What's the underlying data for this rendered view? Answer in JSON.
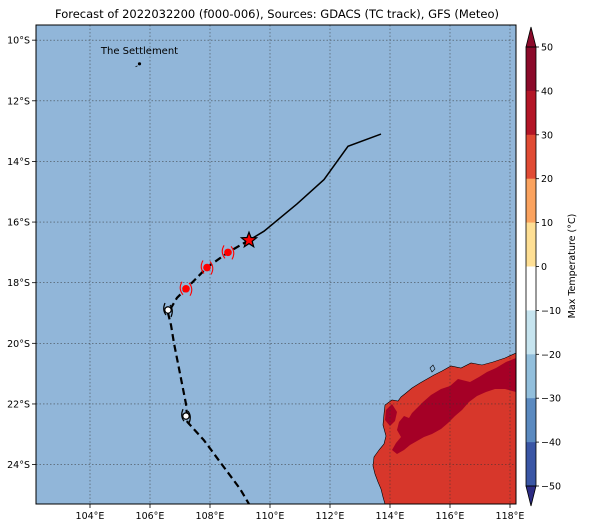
{
  "title": "Forecast of 2022032200 (f000-006), Sources: GDACS (TC track), GFS (Meteo)",
  "place_label": "The Settlement",
  "colorbar": {
    "label": "Max Temperature (°C)",
    "range": [
      -50,
      50
    ],
    "tick_labels": [
      "−50",
      "−40",
      "−30",
      "−20",
      "−10",
      "0",
      "10",
      "20",
      "30",
      "40",
      "50"
    ],
    "colors": [
      "#2c2b83",
      "#3a56a5",
      "#5b8ac0",
      "#92bfdc",
      "#c6e4ef",
      "#ffffff",
      "#fedf94",
      "#fba35f",
      "#e04b34",
      "#b31627",
      "#8b0a2a"
    ]
  },
  "colors": {
    "ocean": "#91b6d9",
    "land": "#d7372b",
    "land_hot": "#a50026",
    "track": "#000000",
    "forecast_marker": "#ff0000"
  },
  "map": {
    "lon_range": [
      102.2,
      118.2
    ],
    "lat_range": [
      -25.3,
      -9.5
    ],
    "lon_ticks": [
      "104°E",
      "106°E",
      "108°E",
      "110°E",
      "112°E",
      "114°E",
      "116°E",
      "118°E"
    ],
    "lat_ticks": [
      "10°S",
      "12°S",
      "14°S",
      "16°S",
      "18°S",
      "20°S",
      "22°S",
      "24°S"
    ],
    "grid": true
  },
  "chart_data": {
    "type": "map",
    "past_track": [
      [
        113.7,
        -13.1
      ],
      [
        112.6,
        -13.5
      ],
      [
        111.8,
        -14.6
      ],
      [
        110.9,
        -15.4
      ],
      [
        109.8,
        -16.3
      ],
      [
        109.3,
        -16.6
      ]
    ],
    "current_position": [
      109.3,
      -16.6
    ],
    "forecast_points": [
      [
        108.6,
        -17.0
      ],
      [
        107.9,
        -17.5
      ],
      [
        107.2,
        -18.2
      ]
    ],
    "forecast_track": [
      [
        109.3,
        -16.6
      ],
      [
        108.6,
        -17.0
      ],
      [
        107.9,
        -17.5
      ],
      [
        107.2,
        -18.2
      ],
      [
        106.9,
        -18.5
      ],
      [
        106.6,
        -19.0
      ],
      [
        106.7,
        -19.4
      ],
      [
        106.8,
        -20.0
      ],
      [
        107.0,
        -21.0
      ],
      [
        107.2,
        -22.0
      ],
      [
        107.25,
        -22.6
      ],
      [
        107.8,
        -23.2
      ],
      [
        108.4,
        -24.0
      ],
      [
        109.0,
        -24.8
      ],
      [
        109.3,
        -25.3
      ]
    ],
    "low_markers": [
      [
        106.6,
        -18.9
      ],
      [
        107.2,
        -22.4
      ]
    ],
    "place": [
      105.65,
      -10.45
    ]
  }
}
